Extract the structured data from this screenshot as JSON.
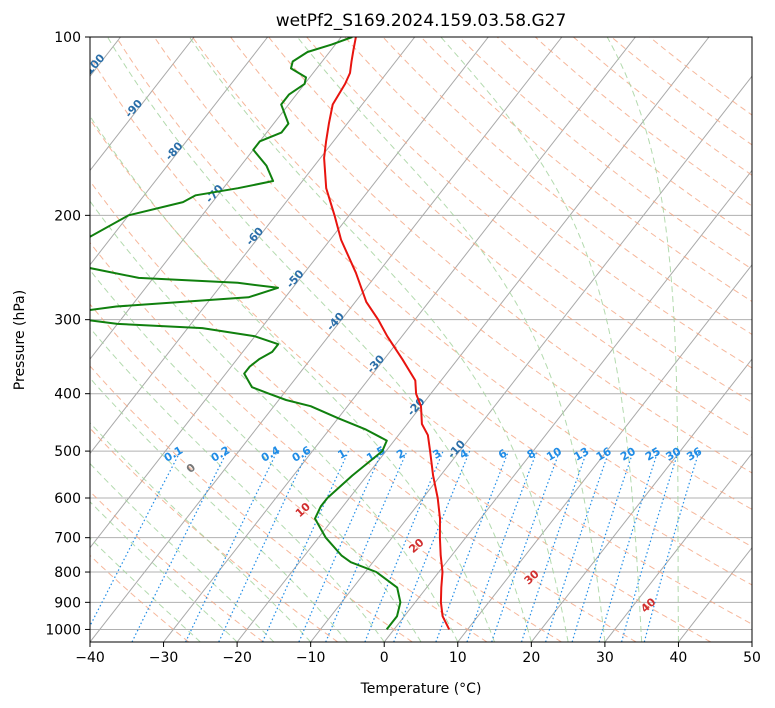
{
  "chart_data": {
    "type": "line",
    "title": "wetPf2_S169.2024.159.03.58.G27",
    "xlabel": "Temperature (°C)",
    "ylabel": "Pressure (hPa)",
    "xlim": [
      -40,
      50
    ],
    "ylim": [
      1050,
      100
    ],
    "x_ticks": [
      -40,
      -30,
      -20,
      -10,
      0,
      10,
      20,
      30,
      40,
      50
    ],
    "x_tick_labels": [
      "−40",
      "−30",
      "−20",
      "−10",
      "0",
      "10",
      "20",
      "30",
      "40",
      "50"
    ],
    "y_ticks": [
      100,
      200,
      300,
      400,
      500,
      600,
      700,
      800,
      900,
      1000
    ],
    "y_tick_labels": [
      "100",
      "200",
      "300",
      "400",
      "500",
      "600",
      "700",
      "800",
      "900",
      "1000"
    ],
    "y_scale": "log",
    "skew": "skew-T",
    "grid": true,
    "colors": {
      "temperature": "#e8140f",
      "dewpoint": "#10800e",
      "isotherm": "#a9a9a9",
      "dry_adiabat": "#f4a582",
      "moist_adiabat": "#a6d3a0",
      "mixing_ratio": "#1f8ce6",
      "isotherm_label": "#2a6ea8",
      "dry_adiabat_label": "#d12f2f"
    },
    "isotherm_labels": [
      "-100",
      "-90",
      "-80",
      "-70",
      "-60",
      "-50",
      "-40",
      "-30",
      "-20",
      "-10"
    ],
    "dry_adiabat_labels": [
      "0",
      "10",
      "20",
      "30",
      "40"
    ],
    "mixing_ratio_labels": [
      "0.1",
      "0.2",
      "0.4",
      "0.6",
      "1",
      "1.5",
      "2",
      "3",
      "4",
      "6",
      "8",
      "10",
      "13",
      "16",
      "20",
      "25",
      "30",
      "36"
    ],
    "series": [
      {
        "name": "",
        "role": "temperature",
        "points": [
          [
            1000,
            7.5
          ],
          [
            950,
            5.2
          ],
          [
            900,
            3.5
          ],
          [
            850,
            2
          ],
          [
            800,
            0.5
          ],
          [
            750,
            -1.5
          ],
          [
            700,
            -3.5
          ],
          [
            650,
            -5.5
          ],
          [
            600,
            -8
          ],
          [
            550,
            -11
          ],
          [
            500,
            -14
          ],
          [
            470,
            -16
          ],
          [
            450,
            -18
          ],
          [
            420,
            -20
          ],
          [
            400,
            -22
          ],
          [
            380,
            -23.5
          ],
          [
            350,
            -27.5
          ],
          [
            320,
            -32
          ],
          [
            300,
            -35
          ],
          [
            280,
            -38.5
          ],
          [
            250,
            -43
          ],
          [
            220,
            -48.5
          ],
          [
            200,
            -52
          ],
          [
            180,
            -56
          ],
          [
            160,
            -59.5
          ],
          [
            150,
            -61
          ],
          [
            140,
            -62.5
          ],
          [
            130,
            -64
          ],
          [
            120,
            -64.5
          ],
          [
            115,
            -65
          ],
          [
            110,
            -66
          ],
          [
            105,
            -67
          ],
          [
            100,
            -68
          ]
        ]
      },
      {
        "name": "",
        "role": "dewpoint",
        "points": [
          [
            1000,
            -1
          ],
          [
            950,
            -1
          ],
          [
            900,
            -2
          ],
          [
            850,
            -4
          ],
          [
            800,
            -8.5
          ],
          [
            770,
            -13
          ],
          [
            750,
            -15
          ],
          [
            700,
            -19
          ],
          [
            650,
            -22.5
          ],
          [
            620,
            -23
          ],
          [
            600,
            -23
          ],
          [
            550,
            -22
          ],
          [
            500,
            -20.5
          ],
          [
            480,
            -21
          ],
          [
            460,
            -25
          ],
          [
            440,
            -30
          ],
          [
            420,
            -35
          ],
          [
            410,
            -39
          ],
          [
            400,
            -42
          ],
          [
            390,
            -45
          ],
          [
            370,
            -47.5
          ],
          [
            360,
            -47.5
          ],
          [
            350,
            -47
          ],
          [
            340,
            -46
          ],
          [
            330,
            -46
          ],
          [
            320,
            -50
          ],
          [
            310,
            -58
          ],
          [
            305,
            -70
          ],
          [
            295,
            -80
          ],
          [
            285,
            -72
          ],
          [
            275,
            -55
          ],
          [
            265,
            -52
          ],
          [
            260,
            -58
          ],
          [
            255,
            -72
          ],
          [
            245,
            -80
          ],
          [
            230,
            -85
          ],
          [
            200,
            -80
          ],
          [
            190,
            -74
          ],
          [
            185,
            -73
          ],
          [
            180,
            -68
          ],
          [
            175,
            -64
          ],
          [
            165,
            -66.5
          ],
          [
            155,
            -70
          ],
          [
            150,
            -70
          ],
          [
            145,
            -68
          ],
          [
            140,
            -68
          ],
          [
            130,
            -71
          ],
          [
            125,
            -71
          ],
          [
            120,
            -70
          ],
          [
            117,
            -70.5
          ],
          [
            113,
            -73.5
          ],
          [
            110,
            -74
          ],
          [
            106,
            -73
          ],
          [
            103,
            -70.5
          ],
          [
            100,
            -68.5
          ]
        ]
      }
    ]
  }
}
